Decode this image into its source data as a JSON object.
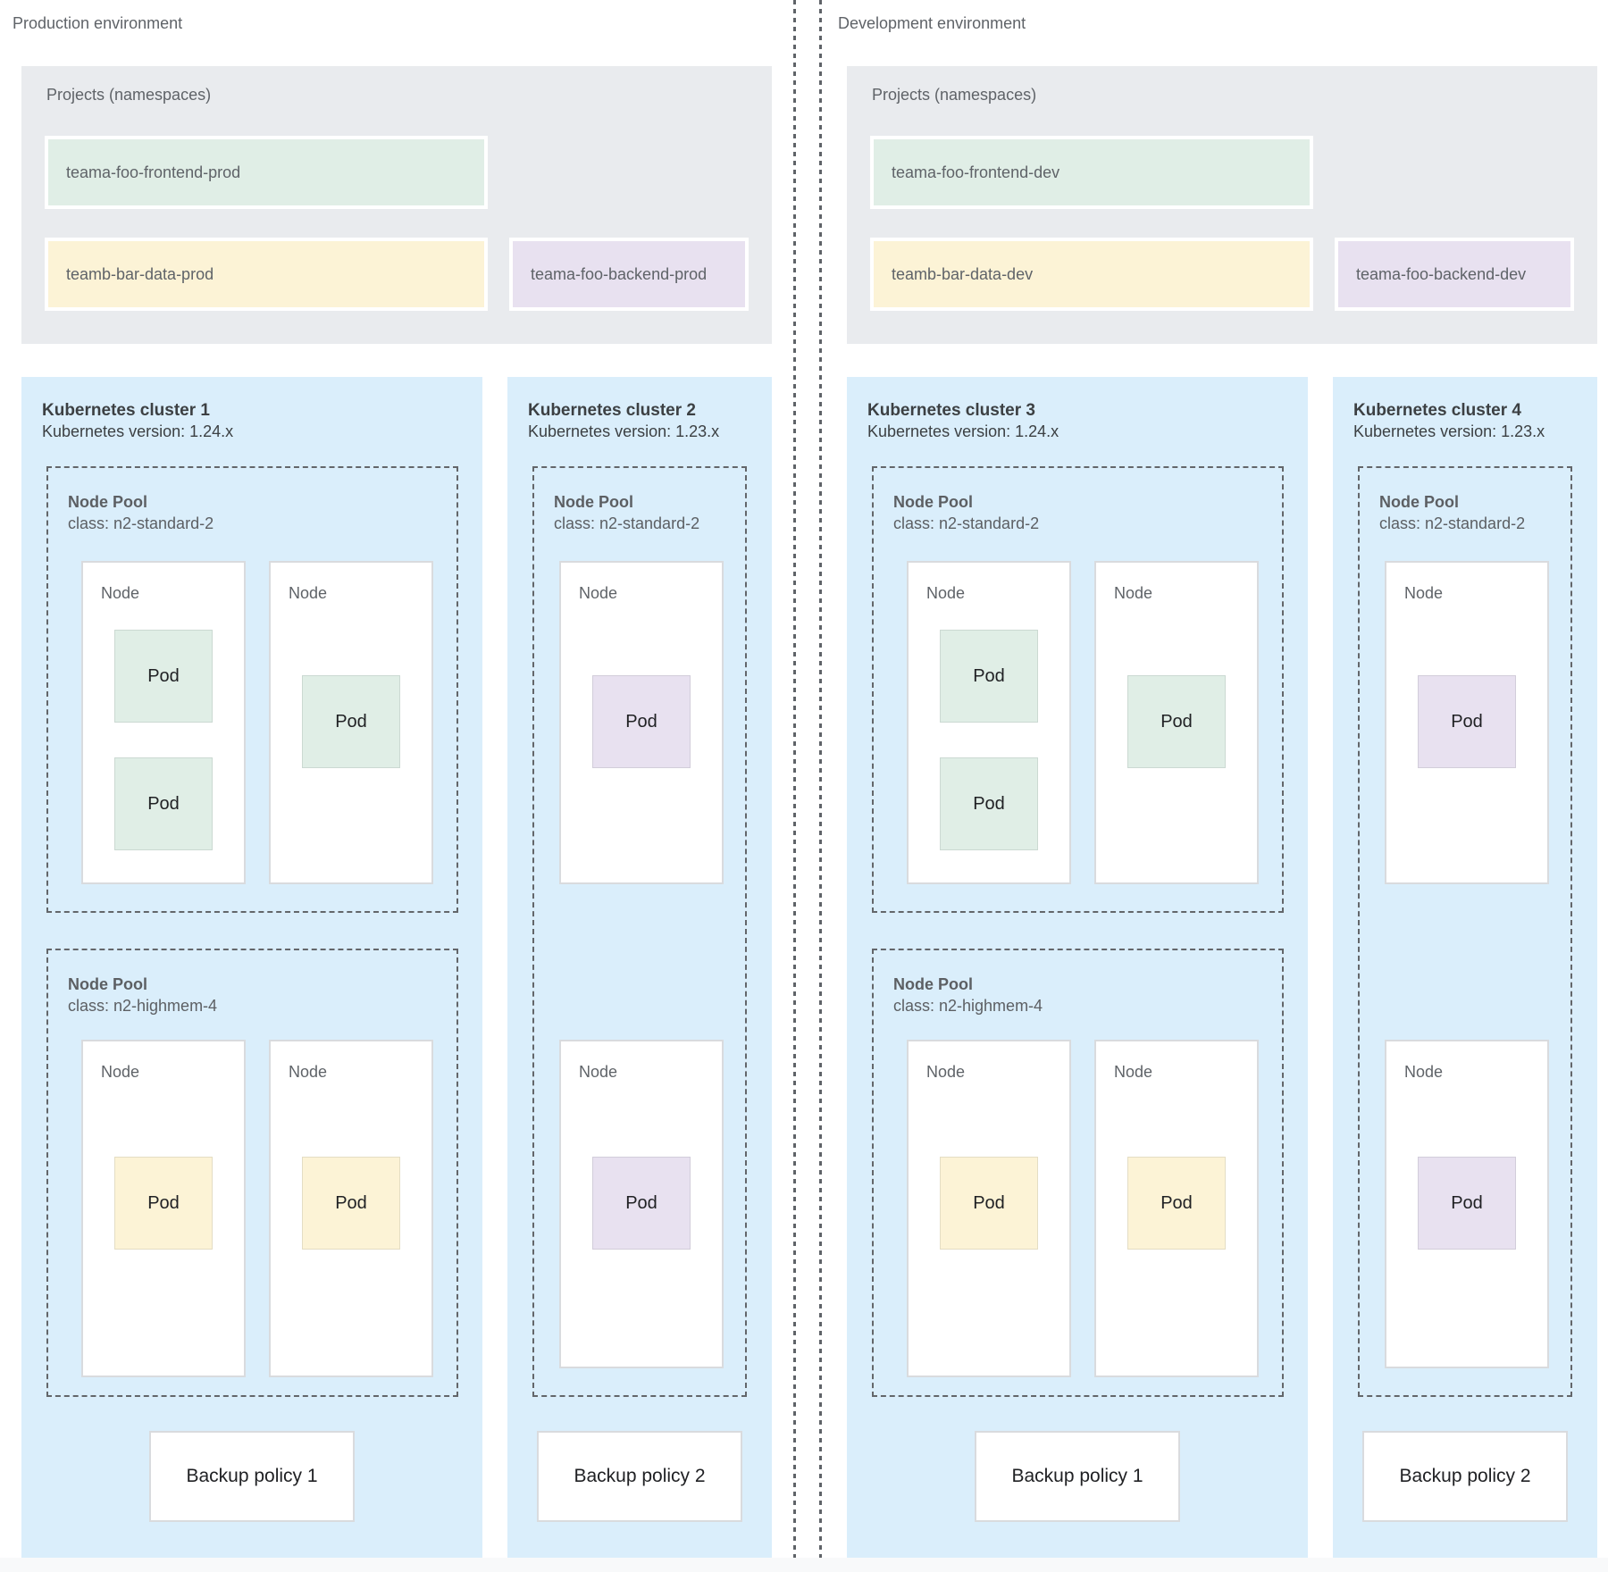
{
  "labels": {
    "node_pool": "Node Pool",
    "node": "Node",
    "pod": "Pod"
  },
  "colors": {
    "cluster_background": "#daeefb",
    "projects_background": "#e9ebee",
    "frontend_green": "#e0eee6",
    "data_yellow": "#fcf3d6",
    "backend_purple": "#e8e1f0",
    "node_white": "#ffffff",
    "dashed_border": "#5f6368"
  },
  "environments": [
    {
      "name": "Production environment",
      "projects": {
        "title": "Projects (namespaces)",
        "frontend": "teama-foo-frontend-prod",
        "data": "teamb-bar-data-prod",
        "backend": "teama-foo-backend-prod"
      },
      "cluster_main": {
        "title": "Kubernetes cluster 1",
        "version": "Kubernetes version: 1.24.x",
        "pool_top_class": "class: n2-standard-2",
        "pool_bottom_class": "class: n2-highmem-4",
        "backup": "Backup policy 1"
      },
      "cluster_side": {
        "title": "Kubernetes cluster 2",
        "version": "Kubernetes version: 1.23.x",
        "pool_class": "class: n2-standard-2",
        "backup": "Backup policy 2"
      }
    },
    {
      "name": "Development environment",
      "projects": {
        "title": "Projects (namespaces)",
        "frontend": "teama-foo-frontend-dev",
        "data": "teamb-bar-data-dev",
        "backend": "teama-foo-backend-dev"
      },
      "cluster_main": {
        "title": "Kubernetes cluster 3",
        "version": "Kubernetes version: 1.24.x",
        "pool_top_class": "class: n2-standard-2",
        "pool_bottom_class": "class: n2-highmem-4",
        "backup": "Backup policy 1"
      },
      "cluster_side": {
        "title": "Kubernetes cluster 4",
        "version": "Kubernetes version: 1.23.x",
        "pool_class": "class: n2-standard-2",
        "backup": "Backup policy 2"
      }
    }
  ]
}
